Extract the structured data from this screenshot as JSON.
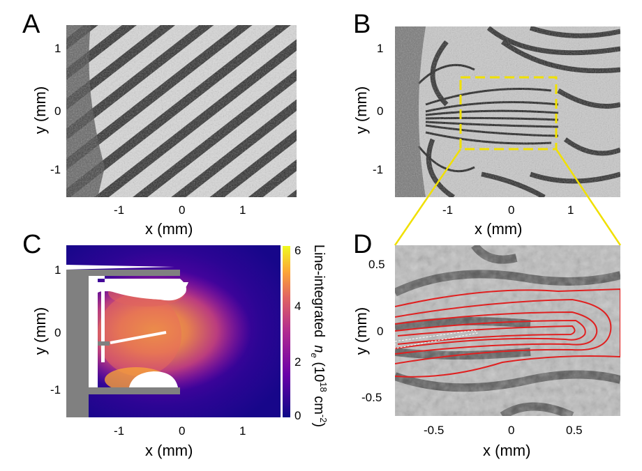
{
  "panels": {
    "A": {
      "letter": "A",
      "xlabel": "x (mm)",
      "ylabel": "y (mm)",
      "xticks": [
        "-1",
        "0",
        "1"
      ],
      "yticks": [
        "1",
        "0",
        "-1"
      ]
    },
    "B": {
      "letter": "B",
      "xlabel": "x (mm)",
      "ylabel": "y (mm)",
      "xticks": [
        "-1",
        "0",
        "1"
      ],
      "yticks": [
        "1",
        "0",
        "-1"
      ]
    },
    "C": {
      "letter": "C",
      "xlabel": "x (mm)",
      "ylabel": "y (mm)",
      "xticks": [
        "-1",
        "0",
        "1"
      ],
      "yticks": [
        "1",
        "0",
        "-1"
      ],
      "colorbar": {
        "ticks": [
          "6",
          "4",
          "2",
          "0"
        ],
        "label_main": "Line-integrated",
        "label_sym": "n",
        "label_sub": "e",
        "label_units": "(10",
        "label_exp": "18",
        "label_units2": " cm",
        "label_exp2": "-2",
        "label_close": ")",
        "range": [
          0,
          6.2
        ],
        "colormap": "plasma"
      }
    },
    "D": {
      "letter": "D",
      "xlabel": "x (mm)",
      "ylabel": "y (mm)",
      "xticks": [
        "-0.5",
        "0",
        "0.5"
      ],
      "yticks": [
        "0.5",
        "0",
        "-0.5"
      ]
    }
  },
  "colors": {
    "zoom_box": "#f0e000",
    "contour": "#e02020",
    "target_gray": "#808080"
  }
}
